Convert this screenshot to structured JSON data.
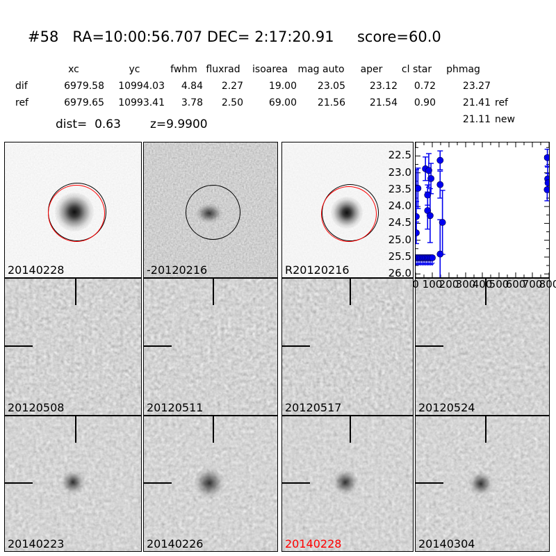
{
  "header": {
    "object_id": "#58",
    "ra": "RA=10:00:56.707",
    "dec": "DEC= 2:17:20.91",
    "score": "score=60.0"
  },
  "photometry_table": {
    "columns": [
      "xc",
      "yc",
      "fwhm",
      "fluxrad",
      "isoarea",
      "mag auto",
      "aper",
      "cl star",
      "phmag"
    ],
    "rows": [
      {
        "label": "dif",
        "xc": "6979.58",
        "yc": "10994.03",
        "fwhm": "4.84",
        "fluxrad": "2.27",
        "isoarea": "19.00",
        "mag_auto": "23.05",
        "aper": "23.12",
        "cl_star": "0.72",
        "phmag": "23.27",
        "phmag_suffix": ""
      },
      {
        "label": "ref",
        "xc": "6979.65",
        "yc": "10993.41",
        "fwhm": "3.78",
        "fluxrad": "2.50",
        "isoarea": "69.00",
        "mag_auto": "21.56",
        "aper": "21.54",
        "cl_star": "0.90",
        "phmag": "21.41",
        "phmag_suffix": "ref"
      },
      {
        "label": "",
        "xc": "",
        "yc": "",
        "fwhm": "",
        "fluxrad": "",
        "isoarea": "",
        "mag_auto": "",
        "aper": "",
        "cl_star": "",
        "phmag": "21.11",
        "phmag_suffix": "new"
      }
    ],
    "dist": "dist=  0.63",
    "z": "z=9.9900"
  },
  "cutouts": {
    "panels": [
      {
        "label": "20140228"
      },
      {
        "label": "-20120216"
      },
      {
        "label": "R20120216"
      },
      {
        "label": "20120508"
      },
      {
        "label": "20120511"
      },
      {
        "label": "20120517"
      },
      {
        "label": "20120524"
      },
      {
        "label": "20140223"
      },
      {
        "label": "20140226"
      },
      {
        "label": "20140228",
        "highlight": "red"
      },
      {
        "label": "20140304"
      }
    ]
  },
  "chart_data": {
    "type": "scatter",
    "title": "",
    "xlabel": "",
    "ylabel": "",
    "x_unit": "days",
    "y_unit": "magnitude",
    "xlim": [
      0,
      800
    ],
    "ylim": [
      26.1,
      22.1
    ],
    "xticks": [
      0,
      100,
      200,
      300,
      400,
      500,
      600,
      700,
      800
    ],
    "yticks": [
      22.5,
      23.0,
      23.5,
      24.0,
      24.5,
      25.0,
      25.5,
      26.0
    ],
    "grid": false,
    "legend": "none",
    "marker_color": "#0000f0",
    "series": [
      {
        "name": "lightcurve",
        "points": [
          {
            "x": 4,
            "y": 23.45,
            "e": 0.55
          },
          {
            "x": 14,
            "y": 23.46,
            "e": 0.6
          },
          {
            "x": 4,
            "y": 24.3,
            "e": 0.45
          },
          {
            "x": 4,
            "y": 24.78,
            "e": 0.32
          },
          {
            "x": 59,
            "y": 22.88,
            "e": 0.35
          },
          {
            "x": 79,
            "y": 22.93,
            "e": 0.5
          },
          {
            "x": 92,
            "y": 23.17,
            "e": 0.45
          },
          {
            "x": 72,
            "y": 23.66,
            "e": 0.3
          },
          {
            "x": 72,
            "y": 24.12,
            "e": 0.55
          },
          {
            "x": 87,
            "y": 24.27,
            "e": 0.8
          },
          {
            "x": 147,
            "y": 22.63,
            "e": 0.28
          },
          {
            "x": 147,
            "y": 23.35,
            "e": 0.4
          },
          {
            "x": 161,
            "y": 24.47,
            "e": 0.95
          },
          {
            "x": 147,
            "y": 25.41,
            "e": 1.02
          },
          {
            "x": 790,
            "y": 22.55,
            "e": 0.25
          },
          {
            "x": 792,
            "y": 23.18,
            "e": 0.35
          },
          {
            "x": 794,
            "y": 23.3,
            "e": 0.28
          },
          {
            "x": 789,
            "y": 23.5,
            "e": 0.33
          }
        ]
      }
    ],
    "upper_limits": {
      "y": 25.52,
      "x": [
        0,
        10,
        20,
        30,
        40,
        50,
        60,
        70,
        80,
        90,
        100
      ]
    }
  }
}
